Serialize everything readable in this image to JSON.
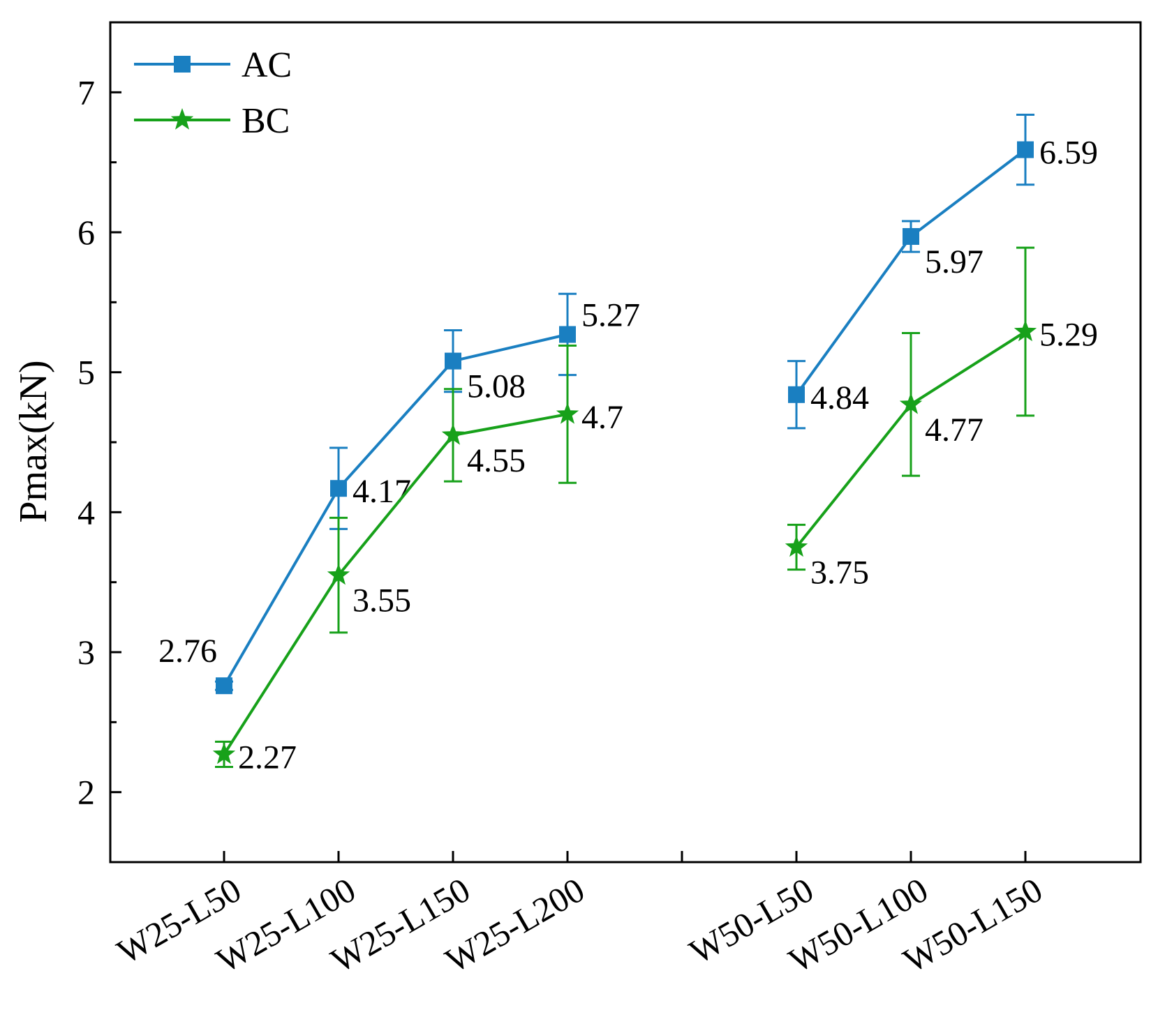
{
  "chart_data": {
    "type": "line",
    "title": "",
    "xlabel": "",
    "ylabel": "Pmax(kN)",
    "ylim": [
      1.5,
      7.5
    ],
    "yticks": [
      2,
      3,
      4,
      5,
      6,
      7
    ],
    "grid": false,
    "legend_position": "top-left",
    "slots": [
      "W25-L50",
      "W25-L100",
      "W25-L150",
      "W25-L200",
      "",
      "W50-L50",
      "W50-L100",
      "W50-L150",
      ""
    ],
    "series": [
      {
        "name": "AC",
        "color": "#1a7fc1",
        "marker": "square",
        "segments": [
          [
            {
              "category": "W25-L50",
              "value": 2.76,
              "error": 0.03,
              "label": "2.76",
              "label_pos": "above-left"
            },
            {
              "category": "W25-L100",
              "value": 4.17,
              "error": 0.29,
              "label": "4.17",
              "label_pos": "right"
            },
            {
              "category": "W25-L150",
              "value": 5.08,
              "error": 0.22,
              "label": "5.08",
              "label_pos": "below-right"
            },
            {
              "category": "W25-L200",
              "value": 5.27,
              "error": 0.29,
              "label": "5.27",
              "label_pos": "above-right"
            }
          ],
          [
            {
              "category": "W50-L50",
              "value": 4.84,
              "error": 0.24,
              "label": "4.84",
              "label_pos": "right"
            },
            {
              "category": "W50-L100",
              "value": 5.97,
              "error": 0.11,
              "label": "5.97",
              "label_pos": "below-right"
            },
            {
              "category": "W50-L150",
              "value": 6.59,
              "error": 0.25,
              "label": "6.59",
              "label_pos": "right"
            }
          ]
        ]
      },
      {
        "name": "BC",
        "color": "#17a11a",
        "marker": "star",
        "segments": [
          [
            {
              "category": "W25-L50",
              "value": 2.27,
              "error": 0.09,
              "label": "2.27",
              "label_pos": "right"
            },
            {
              "category": "W25-L100",
              "value": 3.55,
              "error": 0.41,
              "label": "3.55",
              "label_pos": "below-right"
            },
            {
              "category": "W25-L150",
              "value": 4.55,
              "error": 0.33,
              "label": "4.55",
              "label_pos": "below-right"
            },
            {
              "category": "W25-L200",
              "value": 4.7,
              "error": 0.49,
              "label": "4.7",
              "label_pos": "right"
            }
          ],
          [
            {
              "category": "W50-L50",
              "value": 3.75,
              "error": 0.16,
              "label": "3.75",
              "label_pos": "below-right"
            },
            {
              "category": "W50-L100",
              "value": 4.77,
              "error": 0.51,
              "label": "4.77",
              "label_pos": "below-right"
            },
            {
              "category": "W50-L150",
              "value": 5.29,
              "error": 0.6,
              "label": "5.29",
              "label_pos": "right"
            }
          ]
        ]
      }
    ]
  }
}
